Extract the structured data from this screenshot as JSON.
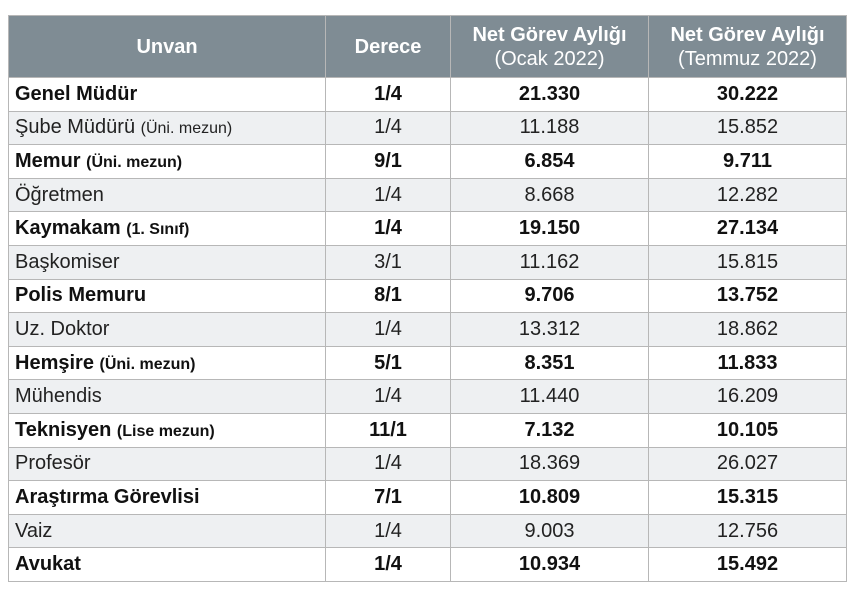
{
  "headers": {
    "title": "Unvan",
    "degree": "Derece",
    "jan_line1": "Net Görev Aylığı",
    "jan_line2": "(Ocak 2022)",
    "jul_line1": "Net Görev Aylığı",
    "jul_line2": "(Temmuz 2022)"
  },
  "rows": [
    {
      "title": "Genel Müdür",
      "note": "",
      "degree": "1/4",
      "jan": "21.330",
      "jul": "30.222",
      "bold": true
    },
    {
      "title": "Şube Müdürü",
      "note": "(Üni. mezun)",
      "degree": "1/4",
      "jan": "11.188",
      "jul": "15.852",
      "bold": false
    },
    {
      "title": "Memur",
      "note": "(Üni. mezun)",
      "degree": "9/1",
      "jan": "6.854",
      "jul": "9.711",
      "bold": true
    },
    {
      "title": "Öğretmen",
      "note": "",
      "degree": "1/4",
      "jan": "8.668",
      "jul": "12.282",
      "bold": false
    },
    {
      "title": "Kaymakam",
      "note": "(1. Sınıf)",
      "degree": "1/4",
      "jan": "19.150",
      "jul": "27.134",
      "bold": true
    },
    {
      "title": "Başkomiser",
      "note": "",
      "degree": "3/1",
      "jan": "11.162",
      "jul": "15.815",
      "bold": false
    },
    {
      "title": "Polis Memuru",
      "note": "",
      "degree": "8/1",
      "jan": "9.706",
      "jul": "13.752",
      "bold": true
    },
    {
      "title": "Uz. Doktor",
      "note": "",
      "degree": "1/4",
      "jan": "13.312",
      "jul": "18.862",
      "bold": false
    },
    {
      "title": "Hemşire",
      "note": "(Üni. mezun)",
      "degree": "5/1",
      "jan": "8.351",
      "jul": "11.833",
      "bold": true
    },
    {
      "title": "Mühendis",
      "note": "",
      "degree": "1/4",
      "jan": "11.440",
      "jul": "16.209",
      "bold": false
    },
    {
      "title": "Teknisyen",
      "note": "(Lise mezun)",
      "degree": "11/1",
      "jan": "7.132",
      "jul": "10.105",
      "bold": true
    },
    {
      "title": "Profesör",
      "note": "",
      "degree": "1/4",
      "jan": "18.369",
      "jul": "26.027",
      "bold": false
    },
    {
      "title": "Araştırma Görevlisi",
      "note": "",
      "degree": "7/1",
      "jan": "10.809",
      "jul": "15.315",
      "bold": true
    },
    {
      "title": "Vaiz",
      "note": "",
      "degree": "1/4",
      "jan": "9.003",
      "jul": "12.756",
      "bold": false
    },
    {
      "title": "Avukat",
      "note": "",
      "degree": "1/4",
      "jan": "10.934",
      "jul": "15.492",
      "bold": true
    }
  ]
}
